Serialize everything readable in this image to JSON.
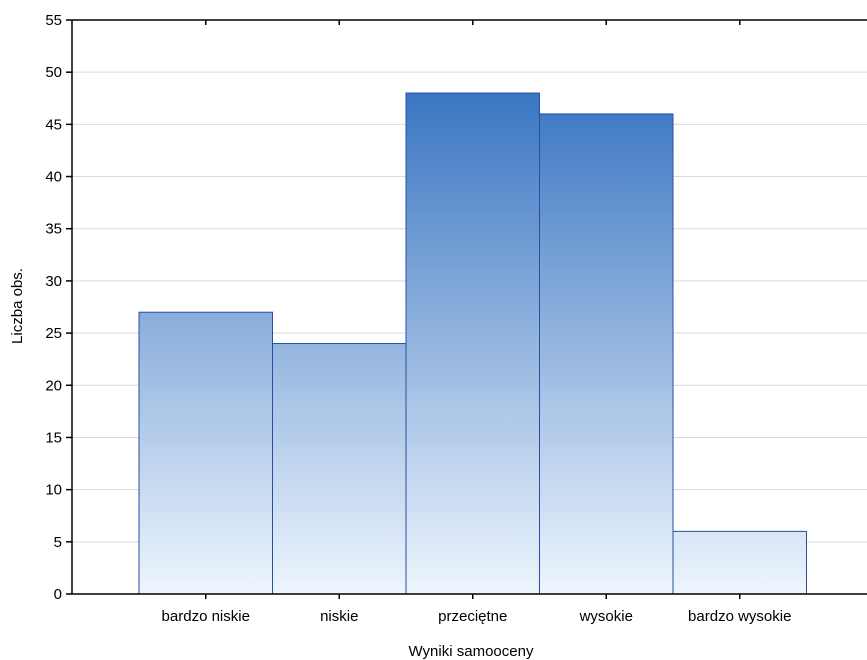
{
  "chart_data": {
    "type": "bar",
    "title": "",
    "xlabel": "Wyniki samooceny",
    "ylabel": "Liczba obs.",
    "categories": [
      "bardzo niskie",
      "niskie",
      "przeciętne",
      "wysokie",
      "bardzo wysokie"
    ],
    "values": [
      27,
      24,
      48,
      46,
      6
    ],
    "ylim": [
      0,
      55
    ],
    "yticks": [
      0,
      5,
      10,
      15,
      20,
      25,
      30,
      35,
      40,
      45,
      50,
      55
    ],
    "grid": true,
    "legend": "none",
    "colors": {
      "bar_top": "#3a76c2",
      "bar_bottom": "#eef5fd",
      "bar_stroke": "#2a4fa0",
      "grid": "#d9d9d9",
      "axis": "#000000"
    }
  }
}
